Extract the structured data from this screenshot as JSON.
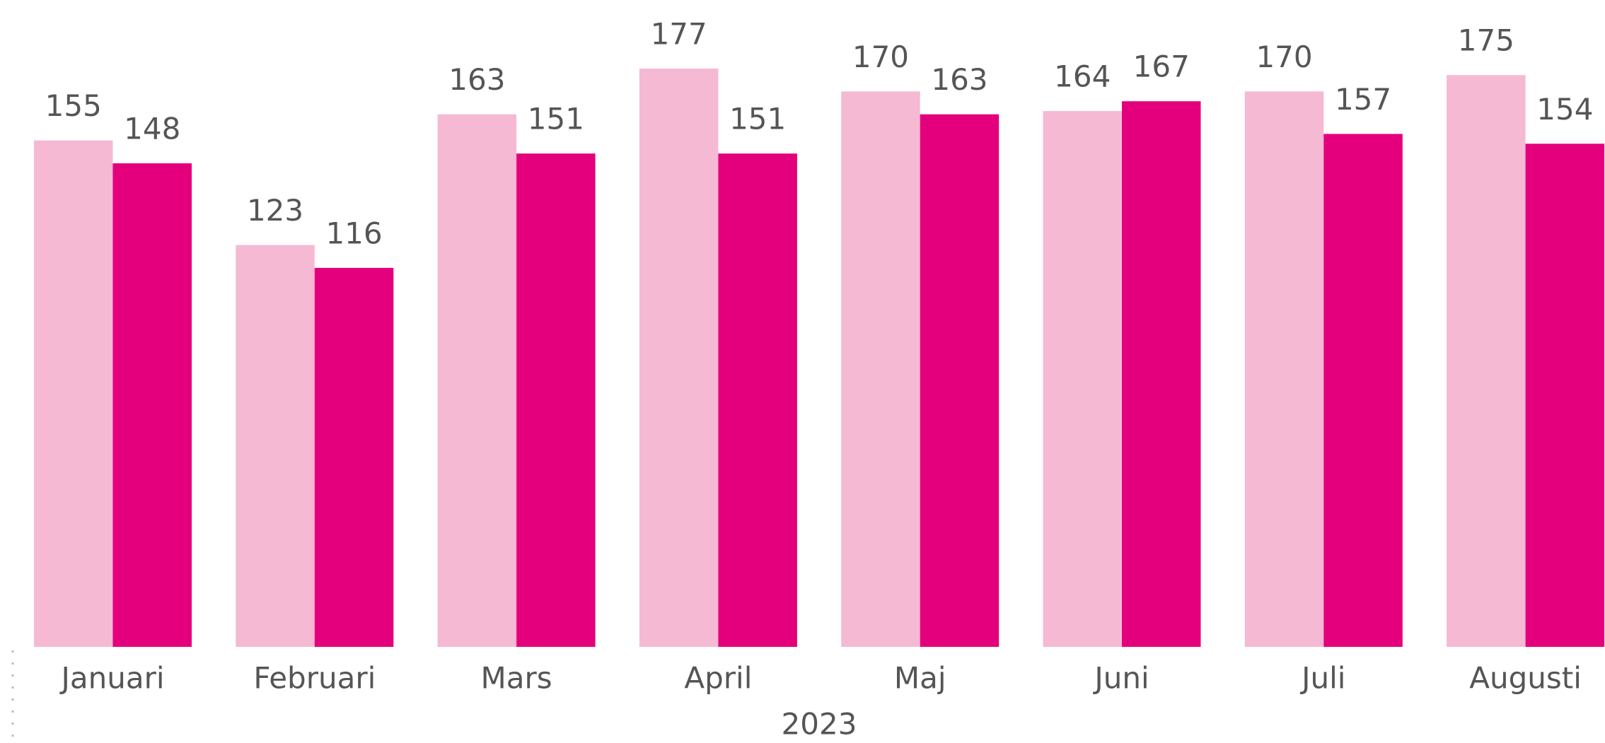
{
  "chart_data": {
    "type": "bar",
    "x_label": "2023",
    "categories": [
      "Januari",
      "Februari",
      "Mars",
      "April",
      "Maj",
      "Juni",
      "Juli",
      "Augusti"
    ],
    "series": [
      {
        "color": "#f5b9d4",
        "values": [
          155,
          123,
          163,
          177,
          170,
          164,
          170,
          175
        ]
      },
      {
        "color": "#e4007c",
        "values": [
          148,
          116,
          151,
          151,
          163,
          167,
          157,
          154
        ]
      }
    ],
    "ylim": [
      0,
      177
    ]
  }
}
